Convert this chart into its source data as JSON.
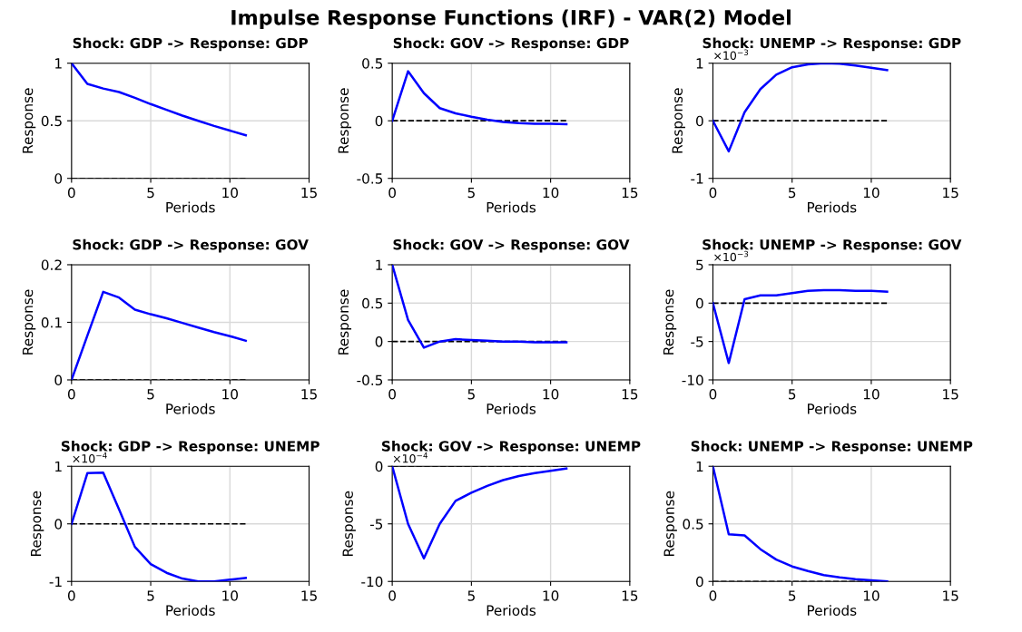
{
  "chart_data": [
    {
      "type": "other",
      "title": "Impulse Response Functions (IRF) - VAR(2) Model"
    },
    {
      "type": "line",
      "title": "Shock: GDP -> Response: GDP",
      "xlabel": "Periods",
      "ylabel": "Response",
      "x": [
        0,
        1,
        2,
        3,
        4,
        5,
        6,
        7,
        8,
        9,
        10,
        11
      ],
      "series": [
        {
          "color": "#0000ff",
          "values": [
            1,
            0.82,
            0.78,
            0.75,
            0.7,
            0.645,
            0.595,
            0.545,
            0.5,
            0.455,
            0.415,
            0.375
          ]
        }
      ],
      "xlim": [
        0,
        15
      ],
      "xticks": [
        0,
        5,
        10,
        15
      ],
      "ylim": [
        0,
        1
      ],
      "yticks": [
        0,
        0.5,
        1
      ],
      "grid": true,
      "ref_lines": [
        {
          "axis": "y",
          "value": 0,
          "color": "#000000",
          "line_style": "dashed"
        }
      ]
    },
    {
      "type": "line",
      "title": "Shock: GOV -> Response: GDP",
      "xlabel": "Periods",
      "ylabel": "Response",
      "x": [
        0,
        1,
        2,
        3,
        4,
        5,
        6,
        7,
        8,
        9,
        10,
        11
      ],
      "series": [
        {
          "color": "#0000ff",
          "values": [
            0,
            0.43,
            0.24,
            0.11,
            0.065,
            0.035,
            0.01,
            -0.01,
            -0.02,
            -0.025,
            -0.025,
            -0.03
          ]
        }
      ],
      "xlim": [
        0,
        15
      ],
      "xticks": [
        0,
        5,
        10,
        15
      ],
      "ylim": [
        -0.5,
        0.5
      ],
      "yticks": [
        -0.5,
        0,
        0.5
      ],
      "grid": true,
      "ref_lines": [
        {
          "axis": "y",
          "value": 0,
          "color": "#000000",
          "line_style": "dashed"
        }
      ]
    },
    {
      "type": "line",
      "title": "Shock: UNEMP -> Response: GDP",
      "xlabel": "Periods",
      "ylabel": "Response",
      "annotations": [
        "×10$^{−3}$"
      ],
      "x": [
        0,
        1,
        2,
        3,
        4,
        5,
        6,
        7,
        8,
        9,
        10,
        11
      ],
      "series": [
        {
          "color": "#0000ff",
          "values": [
            0,
            -0.53,
            0.15,
            0.55,
            0.8,
            0.93,
            0.98,
            1.0,
            0.99,
            0.96,
            0.92,
            0.88
          ]
        }
      ],
      "xlim": [
        0,
        15
      ],
      "xticks": [
        0,
        5,
        10,
        15
      ],
      "ylim": [
        -1,
        1
      ],
      "yticks": [
        -1,
        0,
        1
      ],
      "grid": true,
      "ref_lines": [
        {
          "axis": "y",
          "value": 0,
          "color": "#000000",
          "line_style": "dashed"
        }
      ]
    },
    {
      "type": "line",
      "title": "Shock: GDP -> Response: GOV",
      "xlabel": "Periods",
      "ylabel": "Response",
      "x": [
        0,
        1,
        2,
        3,
        4,
        5,
        6,
        7,
        8,
        9,
        10,
        11
      ],
      "series": [
        {
          "color": "#0000ff",
          "values": [
            0,
            0.077,
            0.153,
            0.143,
            0.122,
            0.114,
            0.107,
            0.099,
            0.091,
            0.083,
            0.076,
            0.068
          ]
        }
      ],
      "xlim": [
        0,
        15
      ],
      "xticks": [
        0,
        5,
        10,
        15
      ],
      "ylim": [
        0,
        0.2
      ],
      "yticks": [
        0,
        0.1,
        0.2
      ],
      "grid": true,
      "ref_lines": [
        {
          "axis": "y",
          "value": 0,
          "color": "#000000",
          "line_style": "dashed"
        }
      ]
    },
    {
      "type": "line",
      "title": "Shock: GOV -> Response: GOV",
      "xlabel": "Periods",
      "ylabel": "Response",
      "x": [
        0,
        1,
        2,
        3,
        4,
        5,
        6,
        7,
        8,
        9,
        10,
        11
      ],
      "series": [
        {
          "color": "#0000ff",
          "values": [
            1,
            0.28,
            -0.08,
            0.0,
            0.03,
            0.02,
            0.01,
            0.0,
            0.0,
            -0.01,
            -0.01,
            -0.01
          ]
        }
      ],
      "xlim": [
        0,
        15
      ],
      "xticks": [
        0,
        5,
        10,
        15
      ],
      "ylim": [
        -0.5,
        1
      ],
      "yticks": [
        -0.5,
        0,
        0.5,
        1
      ],
      "grid": true,
      "ref_lines": [
        {
          "axis": "y",
          "value": 0,
          "color": "#000000",
          "line_style": "dashed"
        }
      ]
    },
    {
      "type": "line",
      "title": "Shock: UNEMP -> Response: GOV",
      "xlabel": "Periods",
      "ylabel": "Response",
      "annotations": [
        "×10$^{−3}$"
      ],
      "x": [
        0,
        1,
        2,
        3,
        4,
        5,
        6,
        7,
        8,
        9,
        10,
        11
      ],
      "series": [
        {
          "color": "#0000ff",
          "values": [
            0,
            -7.8,
            0.5,
            1.0,
            1.0,
            1.3,
            1.6,
            1.7,
            1.7,
            1.6,
            1.6,
            1.5
          ]
        }
      ],
      "xlim": [
        0,
        15
      ],
      "xticks": [
        0,
        5,
        10,
        15
      ],
      "ylim": [
        -10,
        5
      ],
      "yticks": [
        -10,
        -5,
        0,
        5
      ],
      "grid": true,
      "ref_lines": [
        {
          "axis": "y",
          "value": 0,
          "color": "#000000",
          "line_style": "dashed"
        }
      ]
    },
    {
      "type": "line",
      "title": "Shock: GDP -> Response: UNEMP",
      "xlabel": "Periods",
      "ylabel": "Response",
      "annotations": [
        "×10$^{−4}$"
      ],
      "x": [
        0,
        1,
        2,
        3,
        4,
        5,
        6,
        7,
        8,
        9,
        10,
        11
      ],
      "series": [
        {
          "color": "#0000ff",
          "values": [
            0,
            0.88,
            0.89,
            0.25,
            -0.4,
            -0.7,
            -0.85,
            -0.95,
            -1.0,
            -1.0,
            -0.97,
            -0.94
          ]
        }
      ],
      "xlim": [
        0,
        15
      ],
      "xticks": [
        0,
        5,
        10,
        15
      ],
      "ylim": [
        -1,
        1
      ],
      "yticks": [
        -1,
        0,
        1
      ],
      "grid": true,
      "ref_lines": [
        {
          "axis": "y",
          "value": 0,
          "color": "#000000",
          "line_style": "dashed"
        }
      ]
    },
    {
      "type": "line",
      "title": "Shock: GOV -> Response: UNEMP",
      "xlabel": "Periods",
      "ylabel": "Response",
      "annotations": [
        "×10$^{−4}$"
      ],
      "x": [
        0,
        1,
        2,
        3,
        4,
        5,
        6,
        7,
        8,
        9,
        10,
        11
      ],
      "series": [
        {
          "color": "#0000ff",
          "values": [
            0,
            -5.0,
            -8.0,
            -5.0,
            -3.0,
            -2.3,
            -1.7,
            -1.2,
            -0.85,
            -0.6,
            -0.4,
            -0.2
          ]
        }
      ],
      "xlim": [
        0,
        15
      ],
      "xticks": [
        0,
        5,
        10,
        15
      ],
      "ylim": [
        -10,
        0
      ],
      "yticks": [
        -10,
        -5,
        0
      ],
      "grid": true,
      "ref_lines": [
        {
          "axis": "y",
          "value": 0,
          "color": "#000000",
          "line_style": "dashed"
        }
      ]
    },
    {
      "type": "line",
      "title": "Shock: UNEMP -> Response: UNEMP",
      "xlabel": "Periods",
      "ylabel": "Response",
      "x": [
        0,
        1,
        2,
        3,
        4,
        5,
        6,
        7,
        8,
        9,
        10,
        11
      ],
      "series": [
        {
          "color": "#0000ff",
          "values": [
            1,
            0.41,
            0.4,
            0.28,
            0.19,
            0.13,
            0.09,
            0.055,
            0.035,
            0.02,
            0.01,
            0.0
          ]
        }
      ],
      "xlim": [
        0,
        15
      ],
      "xticks": [
        0,
        5,
        10,
        15
      ],
      "ylim": [
        0,
        1
      ],
      "yticks": [
        0,
        0.5,
        1
      ],
      "grid": true,
      "ref_lines": [
        {
          "axis": "y",
          "value": 0,
          "color": "#000000",
          "line_style": "dashed"
        }
      ]
    }
  ]
}
